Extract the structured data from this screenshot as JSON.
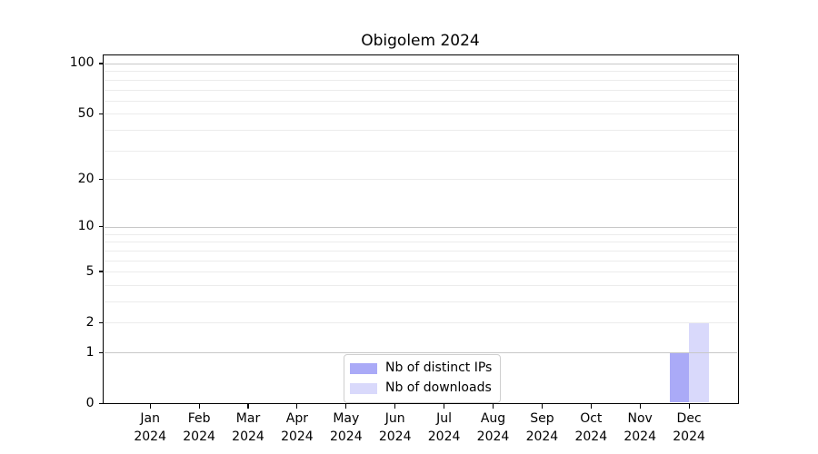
{
  "chart_data": {
    "type": "bar",
    "title": "Obigolem 2024",
    "categories": [
      "Jan",
      "Feb",
      "Mar",
      "Apr",
      "May",
      "Jun",
      "Jul",
      "Aug",
      "Sep",
      "Oct",
      "Nov",
      "Dec"
    ],
    "x_tick_year": "2024",
    "series": [
      {
        "name": "Nb of distinct IPs",
        "color": "#aaaaf7",
        "values": [
          0,
          0,
          0,
          0,
          0,
          0,
          0,
          0,
          0,
          0,
          0,
          1
        ]
      },
      {
        "name": "Nb of downloads",
        "color": "#d9d9fb",
        "values": [
          0,
          0,
          0,
          0,
          0,
          0,
          0,
          0,
          0,
          0,
          0,
          2
        ]
      }
    ],
    "y_axis": {
      "scale": "log10(1+y)",
      "tick_values": [
        0,
        1,
        2,
        5,
        10,
        20,
        50,
        100
      ],
      "major_gridlines": [
        1,
        10,
        100
      ],
      "minor_gridlines": [
        2,
        3,
        4,
        5,
        6,
        7,
        8,
        9,
        20,
        30,
        40,
        50,
        60,
        70,
        80,
        90
      ],
      "axis_top_units": 2.055,
      "major_grid_color": "#c8c8c8",
      "minor_grid_color": "#ececec"
    },
    "legend": {
      "position": "lower center"
    },
    "grid": "horizontal",
    "axis_color": "#000000",
    "text_color": "#000000",
    "background_color": "#ffffff"
  }
}
